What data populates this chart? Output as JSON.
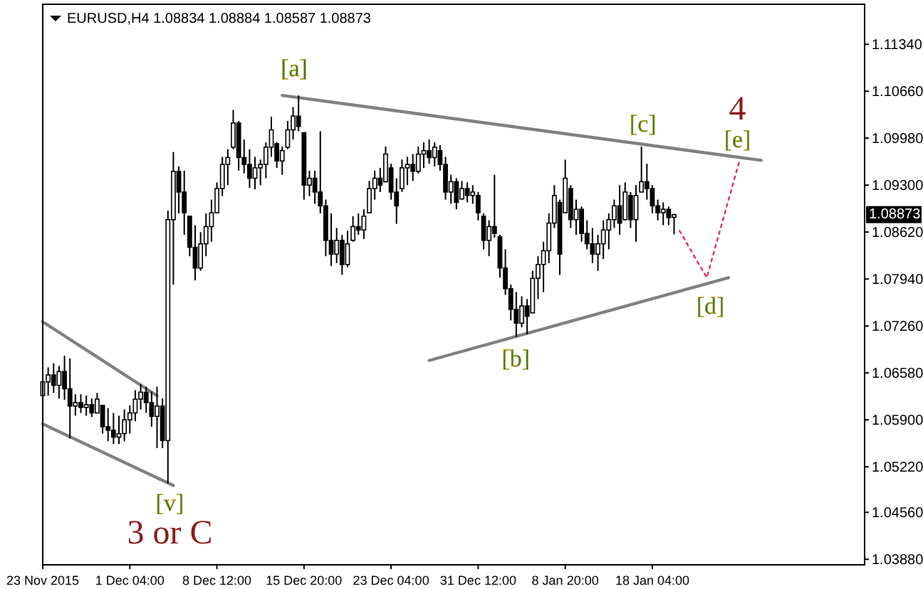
{
  "chart_data": {
    "type": "candlestick",
    "title": "EURUSD,H4 1.08834 1.08884 1.08587 1.08873",
    "color": "#000000",
    "categories": [
      "23 Nov 2015",
      null,
      null,
      null,
      null,
      null,
      null,
      null,
      null,
      null,
      null,
      null,
      null,
      null,
      null,
      null,
      "1 Dec 04:00",
      null,
      null,
      null,
      null,
      null,
      null,
      null,
      null,
      null,
      null,
      null,
      null,
      null,
      null,
      null,
      "8 Dec 12:00",
      null,
      null,
      null,
      null,
      null,
      null,
      null,
      null,
      null,
      null,
      null,
      null,
      null,
      null,
      null,
      "15 Dec 20:00",
      null,
      null,
      null,
      null,
      null,
      null,
      null,
      null,
      null,
      null,
      null,
      null,
      null,
      null,
      null,
      "23 Dec 04:00",
      null,
      null,
      null,
      null,
      null,
      null,
      null,
      null,
      null,
      null,
      null,
      null,
      null,
      null,
      null,
      "31 Dec 12:00",
      null,
      null,
      null,
      null,
      null,
      null,
      null,
      null,
      null,
      null,
      null,
      null,
      null,
      null,
      null,
      "8 Jan 20:00",
      null,
      null,
      null,
      null,
      null,
      null,
      null,
      null,
      null,
      null,
      null,
      null,
      null,
      null,
      null,
      "18 Jan 04:00",
      null,
      null,
      null,
      null,
      null,
      null,
      null,
      null,
      null,
      null,
      null,
      null,
      null,
      null,
      null,
      null,
      null,
      null,
      null,
      null,
      null,
      null,
      null,
      null,
      null,
      null,
      null,
      null,
      null,
      null,
      null,
      null,
      null,
      null,
      null,
      null,
      null,
      null,
      null
    ],
    "ohlc": [
      [
        1.0625,
        1.0658,
        1.0613,
        1.0645
      ],
      [
        1.0645,
        1.0666,
        1.0625,
        1.0655
      ],
      [
        1.0655,
        1.0672,
        1.0629,
        1.064
      ],
      [
        1.064,
        1.0668,
        1.0621,
        1.066
      ],
      [
        1.066,
        1.0683,
        1.0619,
        1.0635
      ],
      [
        1.0635,
        1.0679,
        1.0563,
        1.061
      ],
      [
        1.061,
        1.0627,
        1.0596,
        1.0615
      ],
      [
        1.0615,
        1.0627,
        1.06,
        1.0608
      ],
      [
        1.0608,
        1.0625,
        1.0596,
        1.0612
      ],
      [
        1.0612,
        1.0621,
        1.0594,
        1.06
      ],
      [
        1.06,
        1.0629,
        1.06,
        1.062
      ],
      [
        1.0611,
        1.0611,
        1.057,
        1.058
      ],
      [
        1.058,
        1.0607,
        1.0559,
        1.0575
      ],
      [
        1.0575,
        1.06,
        1.0555,
        1.0565
      ],
      [
        1.0565,
        1.0596,
        1.0555,
        1.057
      ],
      [
        1.057,
        1.0605,
        1.0559,
        1.059
      ],
      [
        1.059,
        1.0611,
        1.057,
        1.06
      ],
      [
        1.06,
        1.0633,
        1.0588,
        1.062
      ],
      [
        1.062,
        1.0642,
        1.0605,
        1.063
      ],
      [
        1.063,
        1.0638,
        1.06,
        1.0615
      ],
      [
        1.0615,
        1.0631,
        1.058,
        1.0595
      ],
      [
        1.0595,
        1.0638,
        1.0549,
        1.061
      ],
      [
        1.061,
        1.0621,
        1.0549,
        1.056
      ],
      [
        1.056,
        1.0893,
        1.0498,
        1.088
      ],
      [
        1.088,
        1.0978,
        1.0786,
        1.095
      ],
      [
        1.095,
        1.0957,
        1.0889,
        1.092
      ],
      [
        1.092,
        1.0951,
        1.0858,
        1.089
      ],
      [
        1.0885,
        1.0885,
        1.0827,
        1.084
      ],
      [
        1.084,
        1.0872,
        1.0792,
        1.081
      ],
      [
        1.081,
        1.0862,
        1.0806,
        1.0845
      ],
      [
        1.0845,
        1.0889,
        1.0827,
        1.087
      ],
      [
        1.087,
        1.0909,
        1.0848,
        1.089
      ],
      [
        1.089,
        1.0934,
        1.0889,
        1.0925
      ],
      [
        1.0925,
        1.0971,
        1.0914,
        1.096
      ],
      [
        1.096,
        1.0982,
        1.093,
        1.097
      ],
      [
        1.0985,
        1.1039,
        1.0982,
        1.102
      ],
      [
        1.102,
        1.1023,
        1.0951,
        1.097
      ],
      [
        1.097,
        1.0996,
        1.0947,
        1.096
      ],
      [
        1.096,
        1.0982,
        1.0926,
        1.094
      ],
      [
        1.094,
        1.0971,
        1.0924,
        1.0955
      ],
      [
        1.0955,
        1.0967,
        1.093,
        1.096
      ],
      [
        1.096,
        1.0992,
        1.094,
        1.0985
      ],
      [
        1.0985,
        1.1029,
        1.0971,
        1.101
      ],
      [
        1.099,
        1.0992,
        1.0955,
        1.0965
      ],
      [
        1.0965,
        1.0986,
        1.0945,
        1.098
      ],
      [
        1.0985,
        1.1023,
        1.0982,
        1.101
      ],
      [
        1.101,
        1.1043,
        1.0996,
        1.103
      ],
      [
        1.103,
        1.106,
        1.1008,
        1.1015
      ],
      [
        1.1006,
        1.1006,
        1.0909,
        1.093
      ],
      [
        1.093,
        1.0951,
        1.0914,
        1.094
      ],
      [
        1.094,
        1.0951,
        1.0903,
        1.092
      ],
      [
        1.092,
        1.1008,
        1.0889,
        1.09
      ],
      [
        1.09,
        1.0909,
        1.0827,
        1.085
      ],
      [
        1.085,
        1.0889,
        1.0813,
        1.083
      ],
      [
        1.083,
        1.0868,
        1.0817,
        1.085
      ],
      [
        1.085,
        1.0858,
        1.08,
        1.0815
      ],
      [
        1.0815,
        1.0864,
        1.0811,
        1.0845
      ],
      [
        1.085,
        1.0885,
        1.0848,
        1.087
      ],
      [
        1.087,
        1.0889,
        1.0858,
        1.0865
      ],
      [
        1.0865,
        1.0895,
        1.0852,
        1.0885
      ],
      [
        1.089,
        1.0936,
        1.0889,
        1.0925
      ],
      [
        1.0925,
        1.0951,
        1.0909,
        1.094
      ],
      [
        1.094,
        1.0955,
        1.092,
        1.093
      ],
      [
        1.0935,
        1.0986,
        1.0934,
        1.0975
      ],
      [
        1.0955,
        1.0961,
        1.0909,
        1.092
      ],
      [
        1.092,
        1.094,
        1.0874,
        1.09
      ],
      [
        1.0925,
        1.0967,
        1.092,
        1.0955
      ],
      [
        1.0955,
        1.0971,
        1.093,
        1.096
      ],
      [
        1.096,
        1.0975,
        1.0936,
        1.095
      ],
      [
        1.095,
        1.0986,
        1.0947,
        1.0975
      ],
      [
        1.0975,
        1.0992,
        1.0955,
        1.098
      ],
      [
        1.098,
        1.0996,
        1.0961,
        1.097
      ],
      [
        1.097,
        1.0992,
        1.0957,
        1.0985
      ],
      [
        1.098,
        1.0988,
        1.0951,
        1.096
      ],
      [
        1.096,
        1.0971,
        1.0909,
        1.092
      ],
      [
        1.092,
        1.0945,
        1.0903,
        1.0935
      ],
      [
        1.0935,
        1.094,
        1.0895,
        1.0905
      ],
      [
        1.091,
        1.0936,
        1.0909,
        1.0925
      ],
      [
        1.0925,
        1.0934,
        1.0905,
        1.0915
      ],
      [
        1.0915,
        1.093,
        1.0903,
        1.092
      ],
      [
        1.0915,
        1.092,
        1.0879,
        1.089
      ],
      [
        1.0885,
        1.0889,
        1.0837,
        1.085
      ],
      [
        1.085,
        1.0879,
        1.0827,
        1.087
      ],
      [
        1.087,
        1.0945,
        1.0854,
        1.086
      ],
      [
        1.0855,
        1.0858,
        1.0796,
        1.081
      ],
      [
        1.081,
        1.0837,
        1.0771,
        1.078
      ],
      [
        1.078,
        1.0786,
        1.0734,
        1.075
      ],
      [
        1.075,
        1.0775,
        1.071,
        1.073
      ],
      [
        1.073,
        1.0769,
        1.0724,
        1.0755
      ],
      [
        1.0755,
        1.0765,
        1.0714,
        1.074
      ],
      [
        1.0745,
        1.0806,
        1.0745,
        1.0795
      ],
      [
        1.0795,
        1.0827,
        1.0765,
        1.0815
      ],
      [
        1.0815,
        1.0848,
        1.0775,
        1.0835
      ],
      [
        1.0835,
        1.0889,
        1.0817,
        1.0875
      ],
      [
        1.0875,
        1.093,
        1.0868,
        1.0915
      ],
      [
        1.0905,
        1.0909,
        1.08,
        1.083
      ],
      [
        1.089,
        1.0967,
        1.0889,
        1.094
      ],
      [
        1.0925,
        1.093,
        1.0868,
        1.088
      ],
      [
        1.088,
        1.0909,
        1.0858,
        1.0895
      ],
      [
        1.0895,
        1.0899,
        1.0848,
        1.086
      ],
      [
        1.086,
        1.0879,
        1.0837,
        1.0845
      ],
      [
        1.0845,
        1.0868,
        1.0817,
        1.083
      ],
      [
        1.083,
        1.0858,
        1.0806,
        1.0845
      ],
      [
        1.0845,
        1.0879,
        1.0823,
        1.0865
      ],
      [
        1.0865,
        1.0889,
        1.0837,
        1.088
      ],
      [
        1.088,
        1.0909,
        1.0868,
        1.09
      ],
      [
        1.09,
        1.093,
        1.0858,
        1.0875
      ],
      [
        1.088,
        1.0934,
        1.0879,
        1.092
      ],
      [
        1.0915,
        1.092,
        1.0868,
        1.088
      ],
      [
        1.088,
        1.093,
        1.0848,
        1.0915
      ],
      [
        1.092,
        1.0986,
        1.092,
        1.0935
      ],
      [
        1.0935,
        1.0961,
        1.0909,
        1.0925
      ],
      [
        1.0925,
        1.093,
        1.0889,
        1.09
      ],
      [
        1.09,
        1.0909,
        1.0879,
        1.089
      ],
      [
        1.089,
        1.0905,
        1.0872,
        1.0895
      ],
      [
        1.0895,
        1.0899,
        1.0872,
        1.0883
      ],
      [
        1.08834,
        1.08884,
        1.08587,
        1.08873
      ],
      null,
      null,
      null,
      null,
      null,
      null,
      null,
      null,
      null,
      null,
      null,
      null,
      null,
      null,
      null,
      null,
      null,
      null,
      null,
      null,
      null,
      null,
      null,
      null,
      null,
      null,
      null,
      null,
      null,
      null,
      null,
      null,
      null,
      null,
      null
    ],
    "series": [
      {
        "type": "line",
        "color": "#808080",
        "line_style": "solid",
        "values": [
          1.0732,
          null,
          null,
          null,
          null,
          null,
          null,
          null,
          null,
          null,
          null,
          null,
          null,
          null,
          null,
          null,
          null,
          null,
          null,
          null,
          null,
          1.0625,
          null,
          null,
          null,
          null,
          null,
          null,
          null,
          null,
          null,
          null,
          null,
          null,
          null,
          null,
          null,
          null,
          null,
          null,
          null,
          null,
          null,
          null,
          null,
          null,
          null,
          null,
          null,
          null,
          null,
          null,
          null,
          null,
          null,
          null,
          null,
          null,
          null,
          null,
          null,
          null,
          null,
          null,
          null,
          null,
          null,
          null,
          null,
          null,
          null,
          null,
          null,
          null,
          null,
          null,
          null,
          null,
          null,
          null,
          null,
          null,
          null,
          null,
          null,
          null,
          null,
          null,
          null,
          null,
          null,
          null,
          null,
          null,
          null,
          null,
          null,
          null,
          null,
          null,
          null,
          null,
          null,
          null,
          null,
          null,
          null,
          null,
          null,
          null,
          null,
          null,
          null,
          null,
          null,
          null,
          null,
          null,
          null,
          null,
          null,
          null,
          null,
          null,
          null,
          null,
          null,
          null,
          null,
          null,
          null,
          null,
          null,
          null,
          null,
          null,
          null,
          null,
          null,
          null,
          null,
          null,
          null,
          null,
          null,
          null,
          null,
          null,
          null,
          null,
          null,
          null
        ]
      },
      {
        "type": "line",
        "color": "#808080",
        "line_style": "solid",
        "values": [
          1.0584,
          null,
          null,
          null,
          null,
          null,
          null,
          null,
          null,
          null,
          null,
          null,
          null,
          null,
          null,
          null,
          null,
          null,
          null,
          null,
          null,
          null,
          null,
          null,
          1.0495,
          null,
          null,
          null,
          null,
          null,
          null,
          null,
          null,
          null,
          null,
          null,
          null,
          null,
          null,
          null,
          null,
          null,
          null,
          null,
          null,
          null,
          null,
          null,
          null,
          null,
          null,
          null,
          null,
          null,
          null,
          null,
          null,
          null,
          null,
          null,
          null,
          null,
          null,
          null,
          null,
          null,
          null,
          null,
          null,
          null,
          null,
          null,
          null,
          null,
          null,
          null,
          null,
          null,
          null,
          null,
          null,
          null,
          null,
          null,
          null,
          null,
          null,
          null,
          null,
          null,
          null,
          null,
          null,
          null,
          null,
          null,
          null,
          null,
          null,
          null,
          null,
          null,
          null,
          null,
          null,
          null,
          null,
          null,
          null,
          null,
          null,
          null,
          null,
          null,
          null,
          null,
          null,
          null,
          null,
          null,
          null,
          null,
          null,
          null,
          null,
          null,
          null,
          null,
          null,
          null,
          null,
          null,
          null,
          null,
          null,
          null,
          null,
          null,
          null,
          null,
          null,
          null,
          null,
          null,
          null,
          null,
          null,
          null,
          null,
          null,
          null,
          null
        ]
      },
      {
        "type": "line",
        "color": "#808080",
        "line_style": "solid",
        "values": [
          null,
          null,
          null,
          null,
          null,
          null,
          null,
          null,
          null,
          null,
          null,
          null,
          null,
          null,
          null,
          null,
          null,
          null,
          null,
          null,
          null,
          null,
          null,
          null,
          null,
          null,
          null,
          null,
          null,
          null,
          null,
          null,
          null,
          null,
          null,
          null,
          null,
          null,
          null,
          null,
          null,
          null,
          null,
          null,
          1.106,
          null,
          null,
          null,
          null,
          null,
          null,
          null,
          null,
          null,
          null,
          null,
          null,
          null,
          null,
          null,
          null,
          null,
          null,
          null,
          null,
          null,
          null,
          null,
          null,
          null,
          null,
          null,
          null,
          null,
          null,
          null,
          null,
          null,
          null,
          null,
          null,
          null,
          null,
          null,
          null,
          null,
          null,
          null,
          null,
          null,
          null,
          null,
          null,
          null,
          null,
          null,
          null,
          null,
          null,
          null,
          null,
          null,
          null,
          null,
          null,
          null,
          null,
          null,
          null,
          null,
          null,
          null,
          null,
          null,
          null,
          null,
          null,
          null,
          null,
          null,
          null,
          null,
          null,
          null,
          null,
          null,
          null,
          null,
          null,
          null,
          null,
          null,
          1.0966,
          null,
          null,
          null,
          null,
          null,
          null,
          null,
          null,
          null,
          null,
          null,
          null,
          null,
          null,
          null,
          null,
          null,
          null,
          null
        ]
      },
      {
        "type": "line",
        "color": "#808080",
        "line_style": "solid",
        "values": [
          null,
          null,
          null,
          null,
          null,
          null,
          null,
          null,
          null,
          null,
          null,
          null,
          null,
          null,
          null,
          null,
          null,
          null,
          null,
          null,
          null,
          null,
          null,
          null,
          null,
          null,
          null,
          null,
          null,
          null,
          null,
          null,
          null,
          null,
          null,
          null,
          null,
          null,
          null,
          null,
          null,
          null,
          null,
          null,
          null,
          null,
          null,
          null,
          null,
          null,
          null,
          null,
          null,
          null,
          null,
          null,
          null,
          null,
          null,
          null,
          null,
          null,
          null,
          null,
          null,
          null,
          null,
          null,
          null,
          null,
          null,
          1.0676,
          null,
          null,
          null,
          null,
          null,
          null,
          null,
          null,
          null,
          null,
          null,
          null,
          null,
          null,
          null,
          null,
          null,
          null,
          null,
          null,
          null,
          null,
          null,
          null,
          null,
          null,
          null,
          null,
          null,
          null,
          null,
          null,
          null,
          null,
          null,
          null,
          null,
          null,
          null,
          null,
          null,
          null,
          null,
          null,
          null,
          null,
          null,
          null,
          null,
          null,
          null,
          null,
          null,
          null,
          1.0796,
          null,
          null,
          null,
          null,
          null,
          null,
          null,
          null,
          null,
          null,
          null,
          null,
          null,
          null,
          null,
          null,
          null,
          null,
          null,
          null,
          null,
          null,
          null,
          null,
          null
        ]
      },
      {
        "type": "line",
        "color": "#e0305a",
        "line_style": "dotted",
        "values": [
          null,
          null,
          null,
          null,
          null,
          null,
          null,
          null,
          null,
          null,
          null,
          null,
          null,
          null,
          null,
          null,
          null,
          null,
          null,
          null,
          null,
          null,
          null,
          null,
          null,
          null,
          null,
          null,
          null,
          null,
          null,
          null,
          null,
          null,
          null,
          null,
          null,
          null,
          null,
          null,
          null,
          null,
          null,
          null,
          null,
          null,
          null,
          null,
          null,
          null,
          null,
          null,
          null,
          null,
          null,
          null,
          null,
          null,
          null,
          null,
          null,
          null,
          null,
          null,
          null,
          null,
          null,
          null,
          null,
          null,
          null,
          null,
          null,
          null,
          null,
          null,
          null,
          null,
          null,
          null,
          null,
          null,
          null,
          null,
          null,
          null,
          null,
          null,
          null,
          null,
          null,
          null,
          null,
          null,
          null,
          null,
          null,
          null,
          null,
          null,
          null,
          null,
          null,
          null,
          null,
          null,
          null,
          null,
          null,
          null,
          null,
          null,
          null,
          null,
          null,
          null,
          null,
          1.0864,
          null,
          null,
          null,
          null,
          1.0796,
          null,
          null,
          null,
          null,
          null,
          1.0965,
          null,
          null,
          null,
          null,
          null,
          null,
          null,
          null,
          null,
          null,
          null,
          null,
          null,
          null,
          null,
          null,
          null,
          null,
          null,
          null,
          null,
          null,
          null
        ]
      }
    ],
    "annotations": [
      {
        "text": "[a]",
        "y": 1.106
      },
      {
        "text": "[b]",
        "y": 1.071
      },
      {
        "text": "[c]",
        "y": 1.0986
      },
      {
        "text": "[d]",
        "y": 1.0796
      },
      {
        "text": "[e]",
        "y": 1.0965
      },
      {
        "text": "[v]",
        "y": 1.0498
      },
      {
        "text": "4",
        "y": 1.0965
      },
      "3 or C",
      {
        "text": "1.08873",
        "y": 1.08873
      }
    ],
    "ylim": [
      1.038,
      1.1192
    ],
    "yticks": [
      {
        "value": 1.0388,
        "label": "1.03880"
      },
      {
        "value": 1.0456,
        "label": "1.04560"
      },
      {
        "value": 1.0522,
        "label": "1.05220"
      },
      {
        "value": 1.059,
        "label": "1.05900"
      },
      {
        "value": 1.0658,
        "label": "1.06580"
      },
      {
        "value": 1.0726,
        "label": "1.07260"
      },
      {
        "value": 1.0794,
        "label": "1.07940"
      },
      {
        "value": 1.0862,
        "label": "1.08620"
      },
      {
        "value": 1.093,
        "label": "1.09300"
      },
      {
        "value": 1.0998,
        "label": "1.09980"
      },
      {
        "value": 1.1066,
        "label": "1.10660"
      },
      {
        "value": 1.1134,
        "label": "1.11340"
      }
    ],
    "grid": false,
    "legend": false
  }
}
